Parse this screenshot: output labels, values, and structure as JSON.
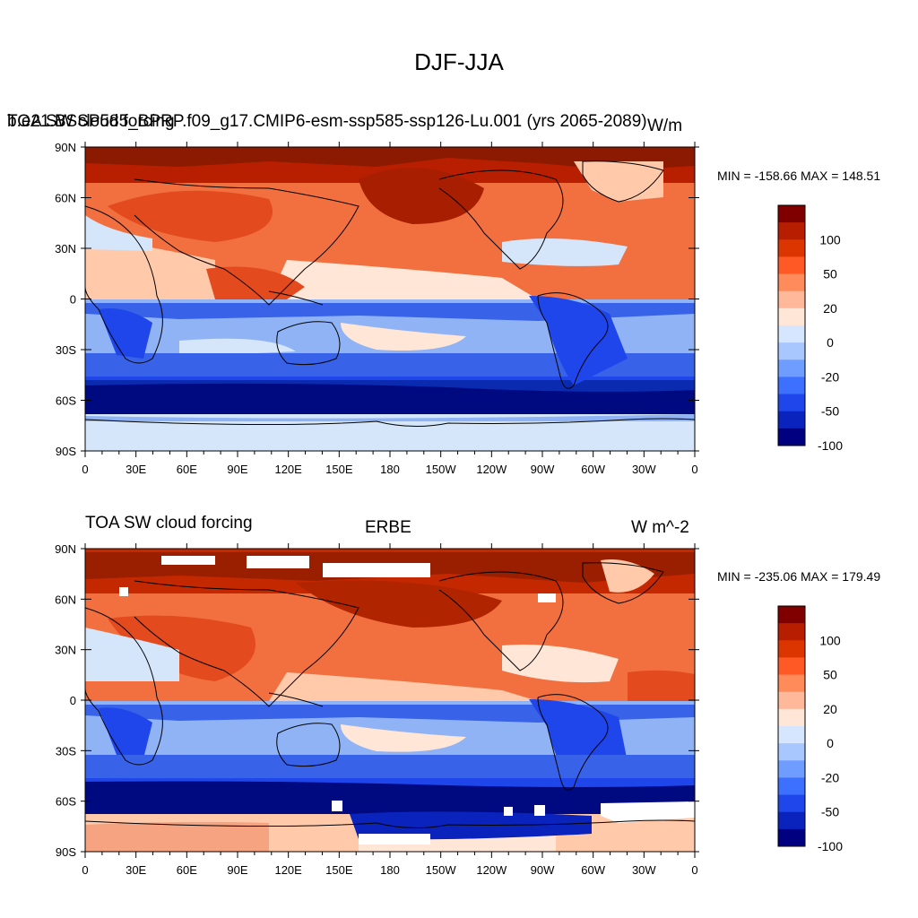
{
  "title": "DJF-JJA",
  "panels": [
    {
      "left_title": "TOA SW cloud forcing",
      "center_title": "b.e21.BSSP585_BPRP.f09_g17.CMIP6-esm-ssp585-ssp126-Lu.001 (yrs 2065-2089)",
      "right_title": "W/m",
      "minmax": "MIN = -158.66 MAX = 148.51"
    },
    {
      "left_title": "TOA SW cloud forcing",
      "center_title": "ERBE",
      "right_title": "W m^-2",
      "minmax": "MIN = -235.06 MAX = 179.49"
    }
  ],
  "map_axes": {
    "lat_labels": [
      "90N",
      "60N",
      "30N",
      "0",
      "30S",
      "60S",
      "90S"
    ],
    "lon_labels": [
      "0",
      "30E",
      "60E",
      "90E",
      "120E",
      "150E",
      "180",
      "150W",
      "120W",
      "90W",
      "60W",
      "30W",
      "0"
    ]
  },
  "colorbar": {
    "labels": [
      "100",
      "50",
      "20",
      "0",
      "-20",
      "-50",
      "-100"
    ],
    "colors": [
      "#800000",
      "#b71e00",
      "#dd3500",
      "#ff5a26",
      "#ff8a5a",
      "#ffb99a",
      "#ffe6d7",
      "#d7e6ff",
      "#a8c6ff",
      "#6e9cff",
      "#3d70ff",
      "#1e46ea",
      "#0a23bd",
      "#000080"
    ]
  },
  "palette": {
    "deep_red": "#8b1a00",
    "red": "#d63a10",
    "orange": "#f27040",
    "peach": "#ffc9aa",
    "pale_blue": "#d5e6fb",
    "light_blue": "#8fb3f5",
    "blue": "#3862e8",
    "navy": "#101e94",
    "coast": "#000000",
    "missing": "#ffffff"
  }
}
